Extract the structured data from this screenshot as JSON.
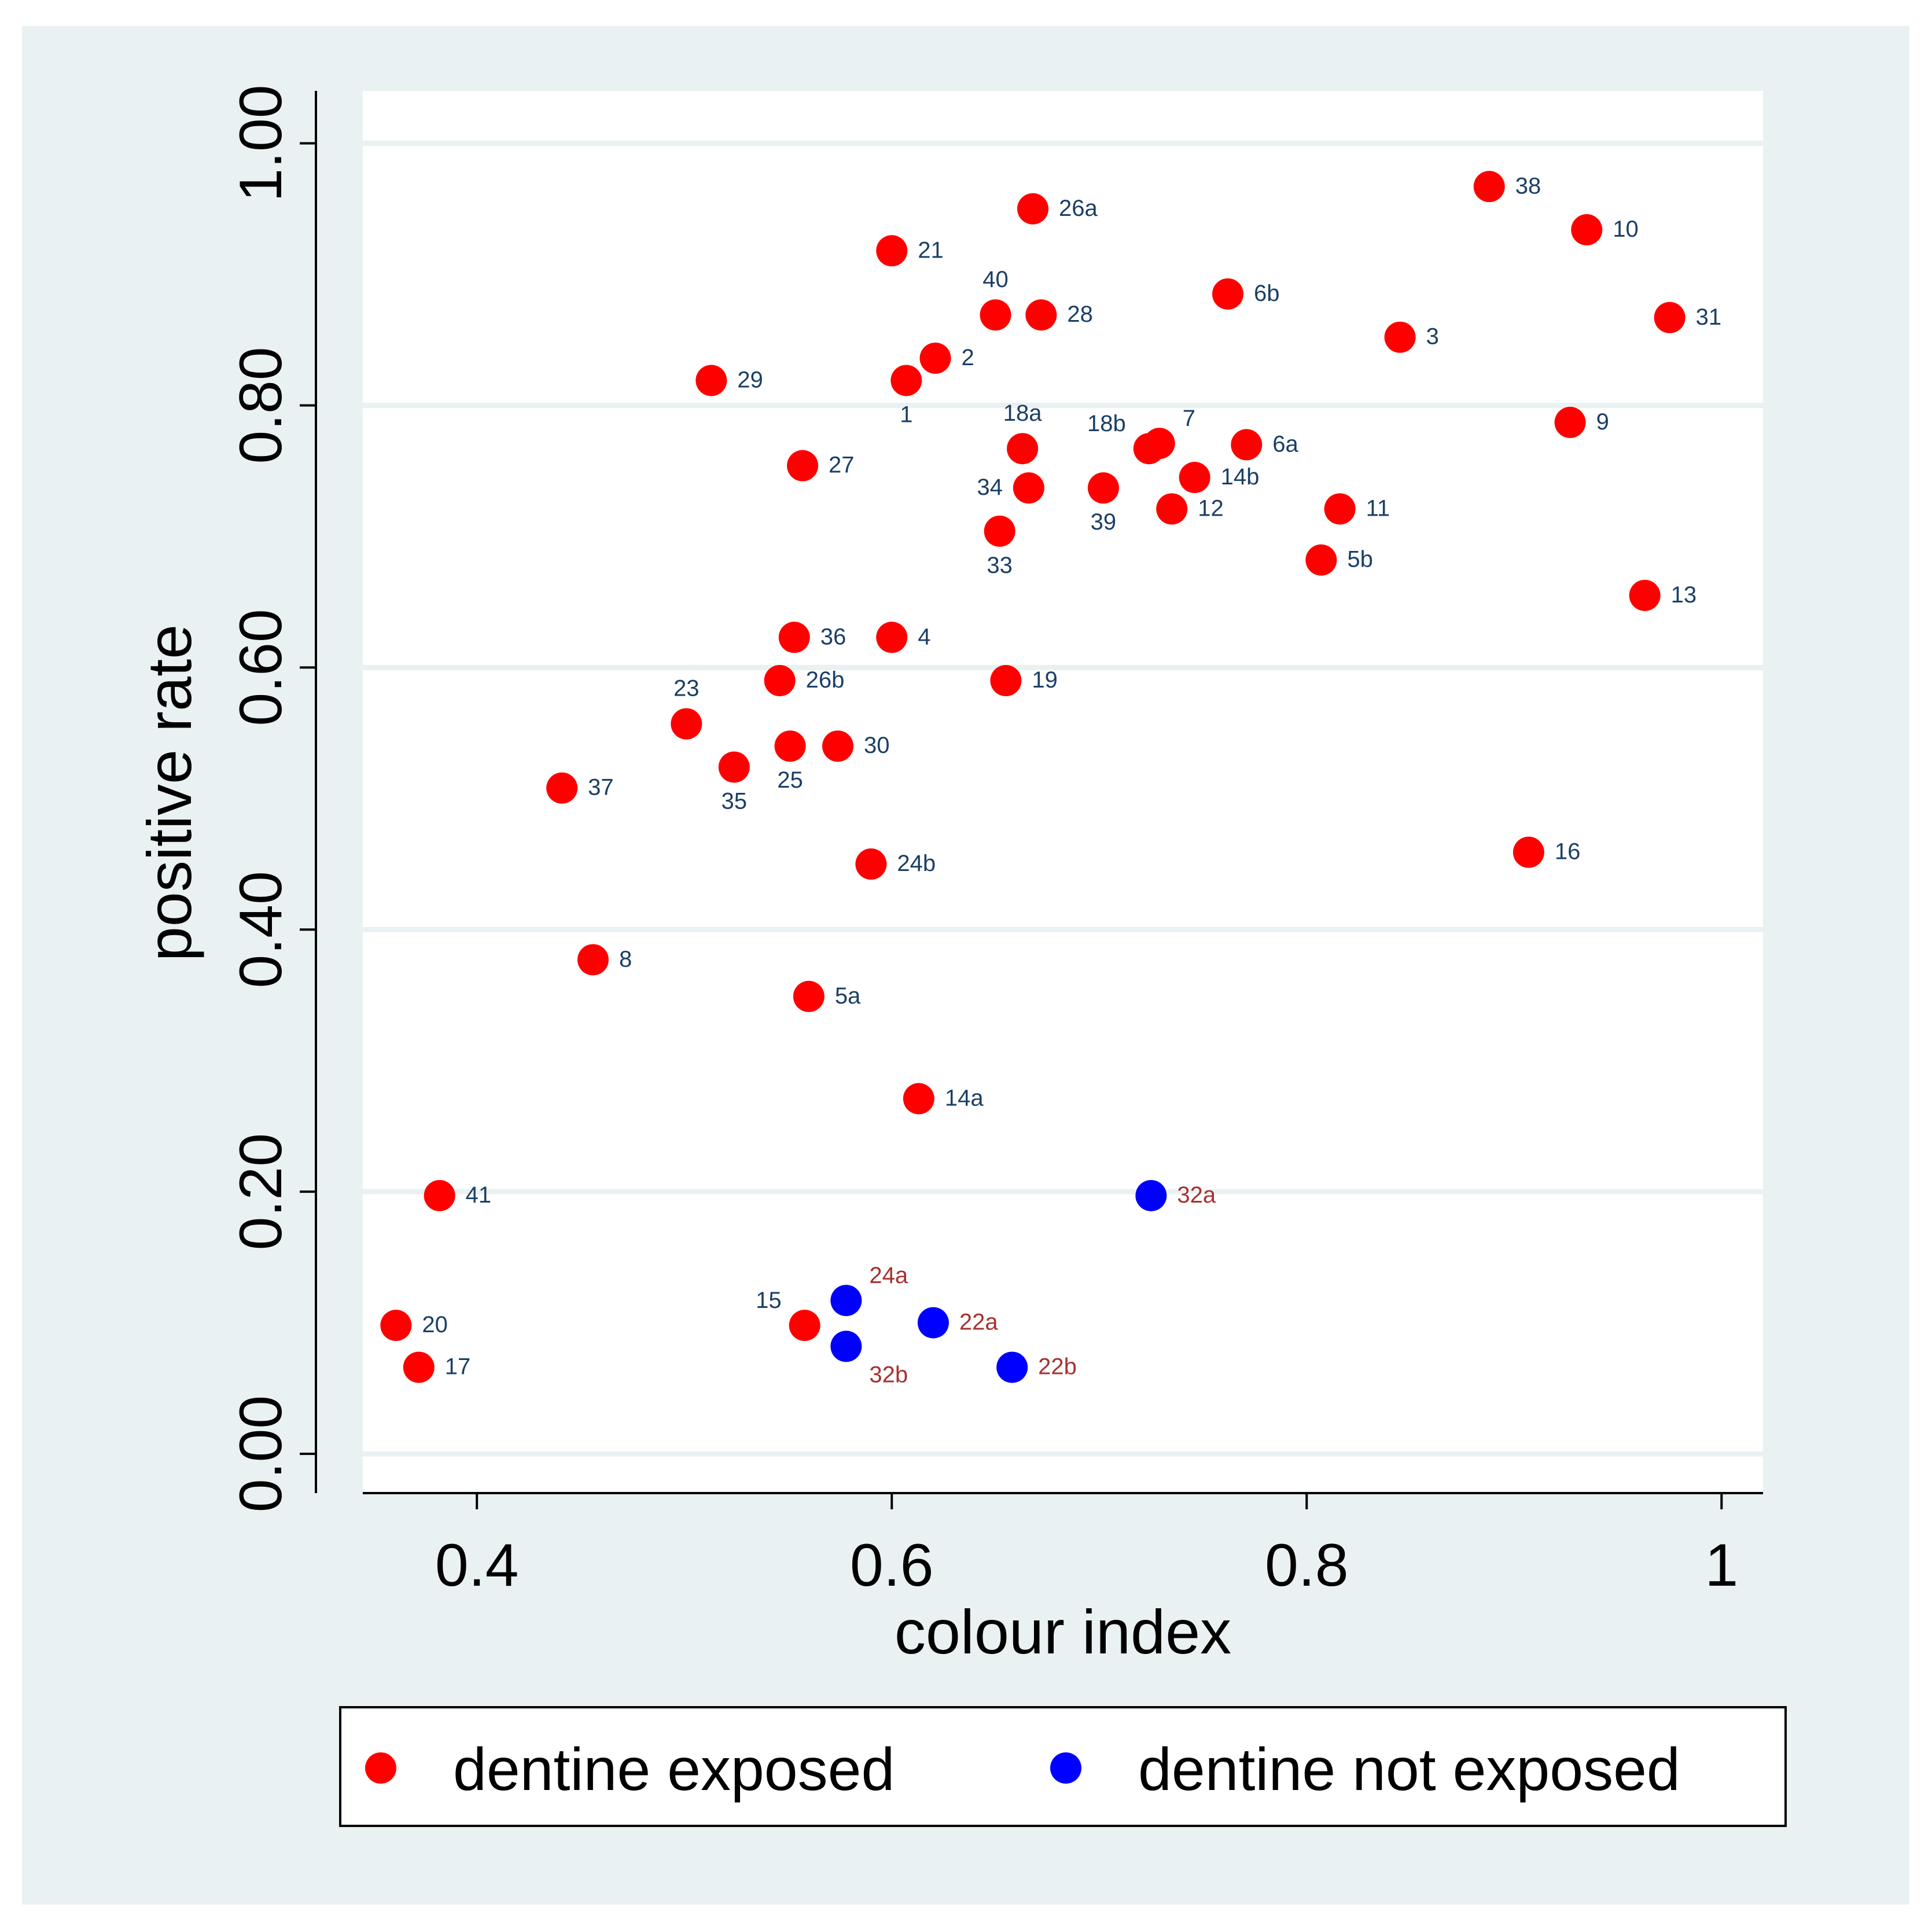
{
  "chart_data": {
    "type": "scatter",
    "xlabel": "colour index",
    "ylabel": "positive rate",
    "xlim": [
      0.345,
      1.02
    ],
    "ylim": [
      -0.03,
      1.04
    ],
    "x_ticks": [
      {
        "value": 0.4,
        "label": "0.4"
      },
      {
        "value": 0.6,
        "label": "0.6"
      },
      {
        "value": 0.8,
        "label": "0.8"
      },
      {
        "value": 1.0,
        "label": "1"
      }
    ],
    "y_ticks": [
      {
        "value": 0.0,
        "label": "0.00"
      },
      {
        "value": 0.2,
        "label": "0.20"
      },
      {
        "value": 0.4,
        "label": "0.40"
      },
      {
        "value": 0.6,
        "label": "0.60"
      },
      {
        "value": 0.8,
        "label": "0.80"
      },
      {
        "value": 1.0,
        "label": "1.00"
      }
    ],
    "grid": true,
    "legend_position": "bottom",
    "series": [
      {
        "name": "dentine exposed",
        "color": "#ff0000",
        "label_color": "#1a3f66",
        "points": [
          {
            "id": "38",
            "x": 0.888,
            "y": 0.967,
            "pos": "right"
          },
          {
            "id": "26a",
            "x": 0.668,
            "y": 0.95,
            "pos": "right"
          },
          {
            "id": "10",
            "x": 0.935,
            "y": 0.934,
            "pos": "right"
          },
          {
            "id": "21",
            "x": 0.6,
            "y": 0.918,
            "pos": "right"
          },
          {
            "id": "6b",
            "x": 0.762,
            "y": 0.885,
            "pos": "right"
          },
          {
            "id": "40",
            "x": 0.65,
            "y": 0.869,
            "pos": "above"
          },
          {
            "id": "28",
            "x": 0.672,
            "y": 0.869,
            "pos": "right"
          },
          {
            "id": "31",
            "x": 0.975,
            "y": 0.867,
            "pos": "right"
          },
          {
            "id": "3",
            "x": 0.845,
            "y": 0.852,
            "pos": "right"
          },
          {
            "id": "2",
            "x": 0.621,
            "y": 0.836,
            "pos": "right"
          },
          {
            "id": "29",
            "x": 0.513,
            "y": 0.819,
            "pos": "right"
          },
          {
            "id": "1",
            "x": 0.607,
            "y": 0.819,
            "pos": "below"
          },
          {
            "id": "9",
            "x": 0.927,
            "y": 0.787,
            "pos": "right"
          },
          {
            "id": "18a",
            "x": 0.663,
            "y": 0.767,
            "pos": "above"
          },
          {
            "id": "18b",
            "x": 0.724,
            "y": 0.767,
            "pos": "aboveleft"
          },
          {
            "id": "7",
            "x": 0.729,
            "y": 0.771,
            "pos": "aboveright"
          },
          {
            "id": "6a",
            "x": 0.771,
            "y": 0.77,
            "pos": "right"
          },
          {
            "id": "27",
            "x": 0.557,
            "y": 0.754,
            "pos": "right"
          },
          {
            "id": "14b",
            "x": 0.746,
            "y": 0.745,
            "pos": "right"
          },
          {
            "id": "34",
            "x": 0.666,
            "y": 0.737,
            "pos": "left"
          },
          {
            "id": "39",
            "x": 0.702,
            "y": 0.737,
            "pos": "below"
          },
          {
            "id": "12",
            "x": 0.735,
            "y": 0.721,
            "pos": "right"
          },
          {
            "id": "11",
            "x": 0.816,
            "y": 0.721,
            "pos": "right"
          },
          {
            "id": "33",
            "x": 0.652,
            "y": 0.704,
            "pos": "below"
          },
          {
            "id": "5b",
            "x": 0.807,
            "y": 0.682,
            "pos": "right"
          },
          {
            "id": "13",
            "x": 0.963,
            "y": 0.655,
            "pos": "right"
          },
          {
            "id": "36",
            "x": 0.553,
            "y": 0.623,
            "pos": "right"
          },
          {
            "id": "4",
            "x": 0.6,
            "y": 0.623,
            "pos": "right"
          },
          {
            "id": "26b",
            "x": 0.546,
            "y": 0.59,
            "pos": "right"
          },
          {
            "id": "19",
            "x": 0.655,
            "y": 0.59,
            "pos": "right"
          },
          {
            "id": "23",
            "x": 0.501,
            "y": 0.557,
            "pos": "above"
          },
          {
            "id": "25",
            "x": 0.551,
            "y": 0.54,
            "pos": "below"
          },
          {
            "id": "30",
            "x": 0.574,
            "y": 0.54,
            "pos": "right"
          },
          {
            "id": "35",
            "x": 0.524,
            "y": 0.524,
            "pos": "below"
          },
          {
            "id": "37",
            "x": 0.441,
            "y": 0.508,
            "pos": "right"
          },
          {
            "id": "16",
            "x": 0.907,
            "y": 0.459,
            "pos": "right"
          },
          {
            "id": "24b",
            "x": 0.59,
            "y": 0.45,
            "pos": "right"
          },
          {
            "id": "8",
            "x": 0.456,
            "y": 0.377,
            "pos": "right"
          },
          {
            "id": "5a",
            "x": 0.56,
            "y": 0.349,
            "pos": "right"
          },
          {
            "id": "14a",
            "x": 0.613,
            "y": 0.271,
            "pos": "right"
          },
          {
            "id": "41",
            "x": 0.382,
            "y": 0.197,
            "pos": "right"
          },
          {
            "id": "20",
            "x": 0.361,
            "y": 0.098,
            "pos": "right"
          },
          {
            "id": "15",
            "x": 0.558,
            "y": 0.098,
            "pos": "aboveleft"
          },
          {
            "id": "17",
            "x": 0.372,
            "y": 0.066,
            "pos": "right"
          }
        ]
      },
      {
        "name": "dentine not exposed",
        "color": "#0000ff",
        "label_color": "#a83030",
        "points": [
          {
            "id": "32a",
            "x": 0.725,
            "y": 0.197,
            "pos": "right"
          },
          {
            "id": "24a",
            "x": 0.578,
            "y": 0.117,
            "pos": "aboveright"
          },
          {
            "id": "22a",
            "x": 0.62,
            "y": 0.1,
            "pos": "right"
          },
          {
            "id": "32b",
            "x": 0.578,
            "y": 0.082,
            "pos": "belowright"
          },
          {
            "id": "22b",
            "x": 0.658,
            "y": 0.066,
            "pos": "right"
          }
        ]
      }
    ]
  }
}
